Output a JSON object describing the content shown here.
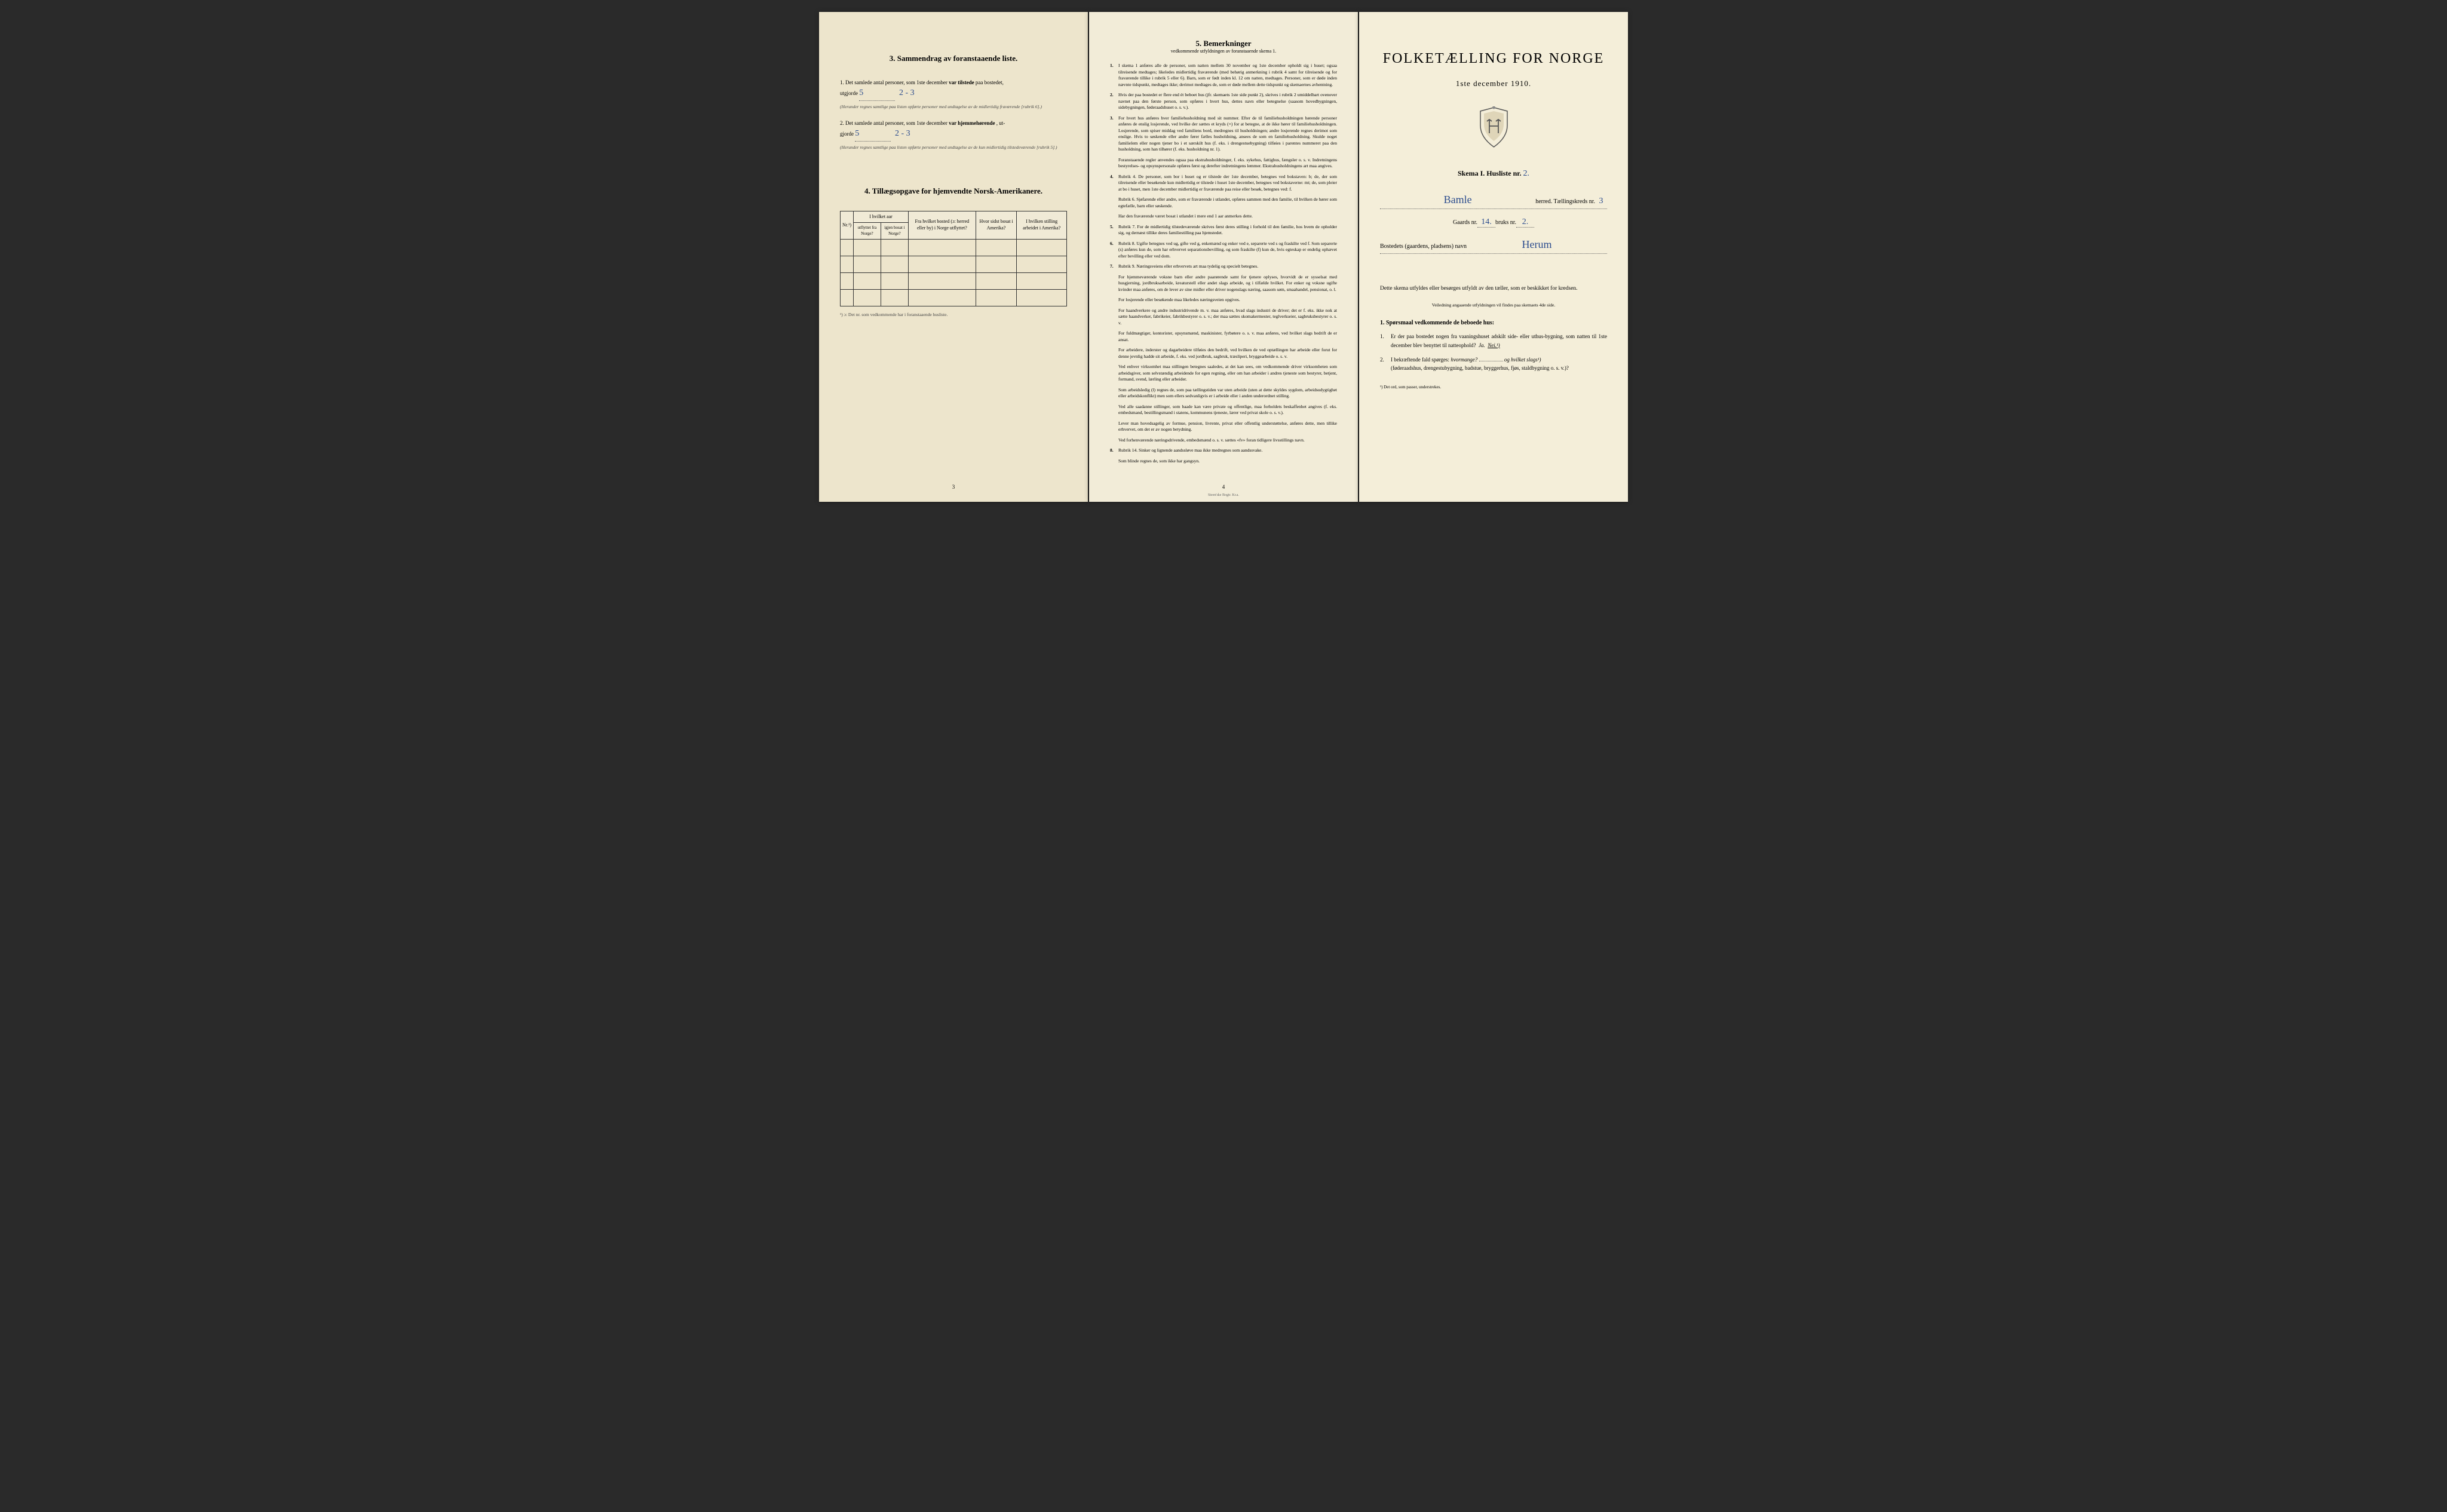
{
  "left": {
    "section3_title": "3.  Sammendrag av foranstaaende liste.",
    "item1_prefix": "1.  Det samlede antal personer, som 1ste december",
    "item1_bold": "var tilstede",
    "item1_suffix": " paa bostedet,",
    "item1_line2": "utgjorde",
    "item1_hw1": "5",
    "item1_hw2": "2 - 3",
    "item1_note": "(Herunder regnes samtlige paa listen opførte personer med undtagelse av de midlertidig fraværende [rubrik 6].)",
    "item2_prefix": "2.  Det samlede antal personer, som 1ste december",
    "item2_bold": "var hjemmehørende",
    "item2_suffix": ", ut-",
    "item2_line2": "gjorde",
    "item2_hw1": "5",
    "item2_hw2": "2 - 3",
    "item2_note": "(Herunder regnes samtlige paa listen opførte personer med undtagelse av de kun midlertidig tilstedeværende [rubrik 5].)",
    "section4_title": "4.  Tillægsopgave for hjemvendte Norsk-Amerikanere.",
    "table": {
      "h1": "Nr.¹)",
      "h2_main": "I hvilket aar",
      "h2a": "utflyttet fra Norge?",
      "h2b": "igjen bosat i Norge?",
      "h3": "Fra hvilket bosted (ɔ: herred eller by) i Norge utflyttet?",
      "h4": "Hvor sidst bosat i Amerika?",
      "h5": "I hvilken stilling arbeidet i Amerika?"
    },
    "table_footnote": "¹) ɔ: Det nr. som vedkommende har i foranstaaende husliste.",
    "page_num": "3"
  },
  "middle": {
    "title": "5.  Bemerkninger",
    "subtitle": "vedkommende utfyldningen av foranstaaende skema 1.",
    "items": [
      {
        "n": "1.",
        "t": "I skema 1 anføres alle de personer, som natten mellem 30 november og 1ste december opholdt sig i huset; ogsaa tilreisende medtages; likeledes midlertidig fraværende (med behørig anmerkning i rubrik 4 samt for tilreisende og for fraværende tillike i rubrik 5 eller 6). Barn, som er født inden kl. 12 om natten, medtages. Personer, som er døde inden nævnte tidspunkt, medtages ikke; derimot medtages de, som er døde mellem dette tidspunkt og skemaernes avhentning."
      },
      {
        "n": "2.",
        "t": "Hvis der paa bostedet er flere end ét beboet hus (jfr. skemaets 1ste side punkt 2), skrives i rubrik 2 umiddelbart ovenover navnet paa den første person, som opføres i hvert hus, dettes navn eller betegnelse (saasom hovedbygningen, sidebygningen, føderaadshuset o. s. v.)."
      },
      {
        "n": "3.",
        "t": "For hvert hus anføres hver familiehusholdning med sit nummer. Efter de til familiehusholdningen hørende personer anføres de enslig losjerende, ved hvilke der sættes et kryds (×) for at betegne, at de ikke hører til familiehusholdningen. Losjerende, som spiser middag ved familiens bord, medregnes til husholdningen; andre losjerende regnes derimot som enslige. Hvis to søskende eller andre fører fælles husholdning, ansees de som en familiehusholdning. Skulde noget familielem eller nogen tjener bo i et særskilt hus (f. eks. i drengestuebygning) tilføies i parentes nummeret paa den husholdning, som han tilhører (f. eks. husholdning nr. 1)."
      },
      {
        "n": "",
        "t": "Foranstaaende regler anvendes ogsaa paa ekstrahusholdninger, f. eks. sykehus, fattighus, fængsler o. s. v. Indretningens bestyrelses- og opsynspersonale opføres først og derefter indretningens lemmer. Ekstrahusholdningens art maa angives."
      },
      {
        "n": "4.",
        "t": "Rubrik 4. De personer, som bor i huset og er tilstede der 1ste december, betegnes ved bokstaven: b; de, der som tilreisende eller besøkende kun midlertidig er tilstede i huset 1ste december, betegnes ved bokstaverne: mt; de, som pleier at bo i huset, men 1ste december midlertidig er fraværende paa reise eller besøk, betegnes ved: f."
      },
      {
        "n": "",
        "t": "Rubrik 6. Sjøfarende eller andre, som er fraværende i utlandet, opføres sammen med den familie, til hvilken de hører som egtefælle, barn eller søskende."
      },
      {
        "n": "",
        "t": "Har den fraværende været bosat i utlandet i mere end 1 aar anmerkes dette."
      },
      {
        "n": "5.",
        "t": "Rubrik 7. For de midlertidig tilstedeværende skrives først deres stilling i forhold til den familie, hos hvem de opholder sig, og dernæst tillike deres familiestilling paa hjemstedet."
      },
      {
        "n": "6.",
        "t": "Rubrik 8. Ugifte betegnes ved ug, gifte ved g, enkemænd og enker ved e, separerte ved s og fraskilte ved f. Som separerte (s) anføres kun de, som har erhvervet separationsbevilling, og som fraskilte (f) kun de, hvis egteskap er endelig ophævet efter bevilling eller ved dom."
      },
      {
        "n": "7.",
        "t": "Rubrik 9. Næringsveiens eller erhvervets art maa tydelig og specielt betegnes."
      },
      {
        "n": "",
        "t": "For hjemmeværende voksne barn eller andre paarørende samt for tjenere oplyses, hvorvidt de er sysselsat med husgjerning, jordbruksarbeide, kreaturstell eller andet slags arbeide, og i tilfælde hvilket. For enker og voksne ugifte kvinder maa anføres, om de lever av sine midler eller driver nogenslags næring, saasom søm, smaahandel, pensionat, o. l."
      },
      {
        "n": "",
        "t": "For losjerende eller besøkende maa likeledes næringsveien opgives."
      },
      {
        "n": "",
        "t": "For haandverkere og andre industridrivende m. v. maa anføres, hvad slags industri de driver; det er f. eks. ikke nok at sætte haandverker, fabrikeier, fabrikbestyrer o. s. v.; der maa sættes skomakermester, teglverkseier, sagbruksbestyrer o. s. v."
      },
      {
        "n": "",
        "t": "For fuldmægtiger, kontorister, opsynsmænd, maskinister, fyrbøtere o. s. v. maa anføres, ved hvilket slags bedrift de er ansat."
      },
      {
        "n": "",
        "t": "For arbeidere, inderster og dagarbeidere tilføies den bedrift, ved hvilken de ved optællingen har arbeide eller forut for denne jevnlig hadde sit arbeide, f. eks. ved jordbruk, sagbruk, træsliperi, bryggearbeide o. s. v."
      },
      {
        "n": "",
        "t": "Ved enhver virksomhet maa stillingen betegnes saaledes, at det kan sees, om vedkommende driver virksomheten som arbeidsgiver, som selvstændig arbeidende for egen regning, eller om han arbeider i andres tjeneste som bestyrer, betjent, formand, svend, lærling eller arbeider."
      },
      {
        "n": "",
        "t": "Som arbeidsledig (l) regnes de, som paa tællingstiden var uten arbeide (uten at dette skyldes sygdom, arbeidsudygtighet eller arbeidskonflikt) men som ellers sedvanligvis er i arbeide eller i anden underordnet stilling."
      },
      {
        "n": "",
        "t": "Ved alle saadanne stillinger, som baade kan være private og offentlige, maa forholdets beskaffenhet angives (f. eks. embedsmand, bestillingsmand i statens, kommunens tjeneste, lærer ved privat skole o. s. v.)."
      },
      {
        "n": "",
        "t": "Lever man hovedsagelig av formue, pension, livrente, privat eller offentlig understøttelse, anføres dette, men tillike erhvervet, om det er av nogen betydning."
      },
      {
        "n": "",
        "t": "Ved forhenværende næringsdrivende, embedsmænd o. s. v. sættes «fv» foran tidligere livsstillings navn."
      },
      {
        "n": "8.",
        "t": "Rubrik 14. Sinker og lignende aandssløve maa ikke medregnes som aandssvake."
      },
      {
        "n": "",
        "t": "Som blinde regnes de, som ikke har gangsyn."
      }
    ],
    "page_num": "4",
    "printer": "Steen'ske Bogtr.  Kr.a."
  },
  "right": {
    "title": "FOLKETÆLLING FOR NORGE",
    "date": "1ste december 1910.",
    "skema_label": "Skema I.  Husliste nr.",
    "skema_hw": "2.",
    "herred_hw": "Bamle",
    "herred_label": " herred.  Tællingskreds nr.",
    "herred_num_hw": "3",
    "gaards_label": "Gaards nr.",
    "gaards_hw": "14.",
    "bruks_label": " bruks nr.",
    "bruks_hw": "2.",
    "bosted_label": "Bostedets (gaardens, pladsens) navn",
    "bosted_hw": "Herum",
    "instruction": "Dette skema utfyldes eller besørges utfyldt av den tæller, som er beskikket for kredsen.",
    "small_note": "Veiledning angaaende utfyldningen vil findes paa skemaets 4de side.",
    "q_title": "1.  Spørsmaal vedkommende de beboede hus:",
    "q1_num": "1.",
    "q1_text": "Er der paa bostedet nogen fra vaaningshuset adskilt side- eller uthus-bygning, som natten til 1ste december blev benyttet til natteophold?",
    "q1_ja": "Ja.",
    "q1_nei": "Nei.¹)",
    "q2_num": "2.",
    "q2_text_a": "I bekræftende fald spørges:",
    "q2_text_b": "hvormange?",
    "q2_text_c": "og hvilket slags¹)",
    "q2_text_d": "(føderaadshus, drengestubygning, badstue, bryggerhus, fjøs, staldbygning o. s. v.)?",
    "footnote": "¹) Det ord, som passer, understrekes."
  }
}
